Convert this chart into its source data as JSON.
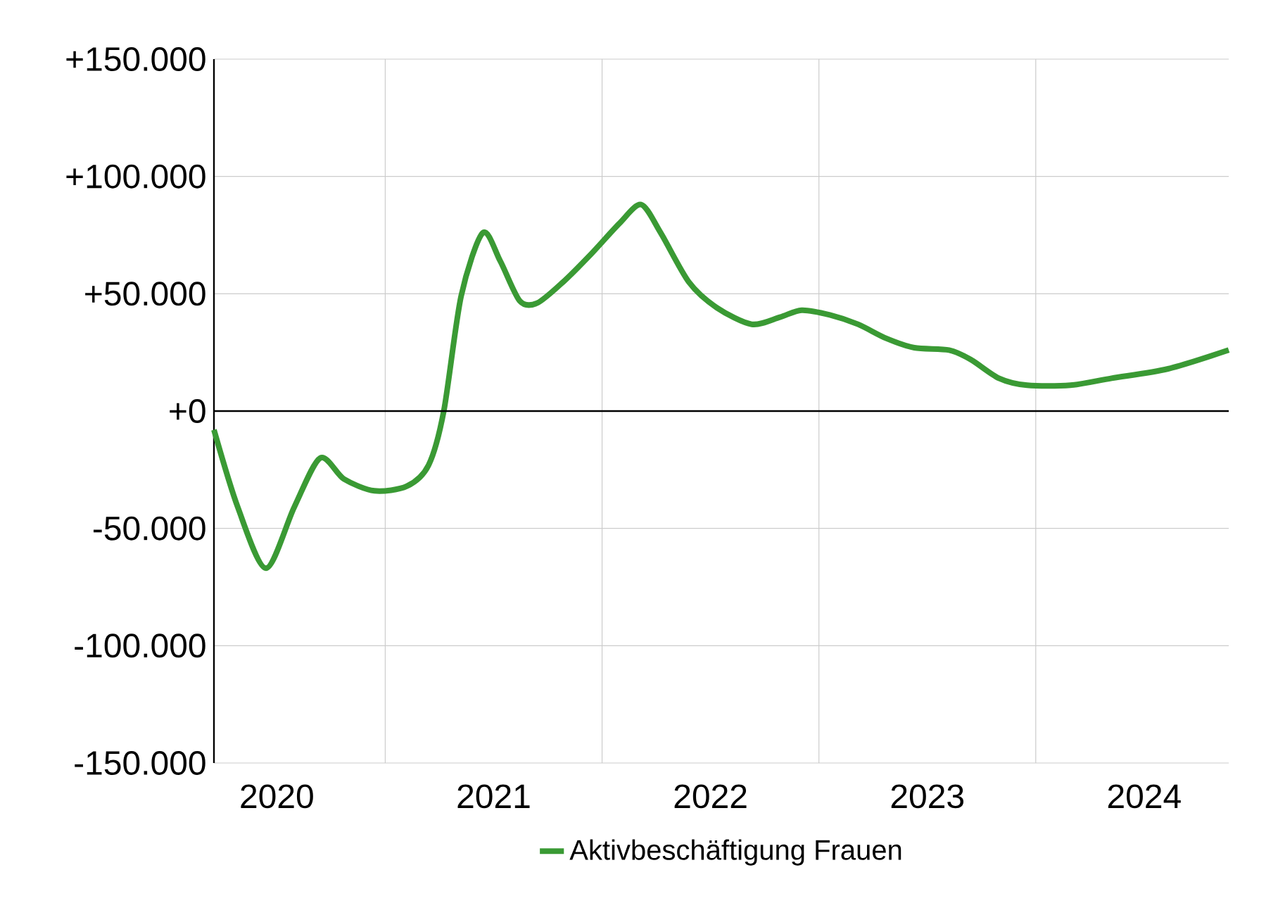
{
  "chart_data": {
    "type": "line",
    "xlim": [
      2020.21,
      2024.89
    ],
    "ylim": [
      -150000,
      150000
    ],
    "xticks": [
      {
        "value": 2020.5,
        "label": "2020"
      },
      {
        "value": 2021,
        "label": null
      },
      {
        "value": 2021.5,
        "label": "2021"
      },
      {
        "value": 2022,
        "label": null
      },
      {
        "value": 2022.5,
        "label": "2022"
      },
      {
        "value": 2023,
        "label": null
      },
      {
        "value": 2023.5,
        "label": "2023"
      },
      {
        "value": 2024,
        "label": null
      },
      {
        "value": 2024.5,
        "label": "2024"
      }
    ],
    "yticks": [
      {
        "value": -150000,
        "label": "-150.000"
      },
      {
        "value": -100000,
        "label": "-100.000"
      },
      {
        "value": -50000,
        "label": "-50.000"
      },
      {
        "value": 0,
        "label": "+0"
      },
      {
        "value": 50000,
        "label": "+50.000"
      },
      {
        "value": 100000,
        "label": "+100.000"
      },
      {
        "value": 150000,
        "label": "+150.000"
      }
    ],
    "grid": true,
    "legend": "bottom",
    "marker": "none",
    "line_style": "solid",
    "series": [
      {
        "name": "Aktivbeschäftigung Frauen",
        "color": "#3a9a34",
        "x": [
          2020.21,
          2020.32,
          2020.45,
          2020.58,
          2020.7,
          2020.81,
          2020.95,
          2021.1,
          2021.2,
          2021.27,
          2021.35,
          2021.45,
          2021.53,
          2021.62,
          2021.7,
          2021.82,
          2021.95,
          2022.08,
          2022.18,
          2022.27,
          2022.4,
          2022.53,
          2022.69,
          2022.82,
          2022.92,
          2023.05,
          2023.18,
          2023.31,
          2023.44,
          2023.6,
          2023.7,
          2023.83,
          2023.96,
          2024.16,
          2024.35,
          2024.61,
          2024.89
        ],
        "values": [
          -8000,
          -41000,
          -67000,
          -41000,
          -20000,
          -29000,
          -34000,
          -32000,
          -23000,
          0,
          49000,
          76000,
          64000,
          47000,
          46000,
          55000,
          67000,
          80000,
          88000,
          76000,
          55000,
          44000,
          37000,
          40000,
          43000,
          41000,
          37000,
          31000,
          27000,
          26000,
          22000,
          14000,
          11000,
          11000,
          14000,
          18000,
          26000
        ]
      }
    ]
  }
}
